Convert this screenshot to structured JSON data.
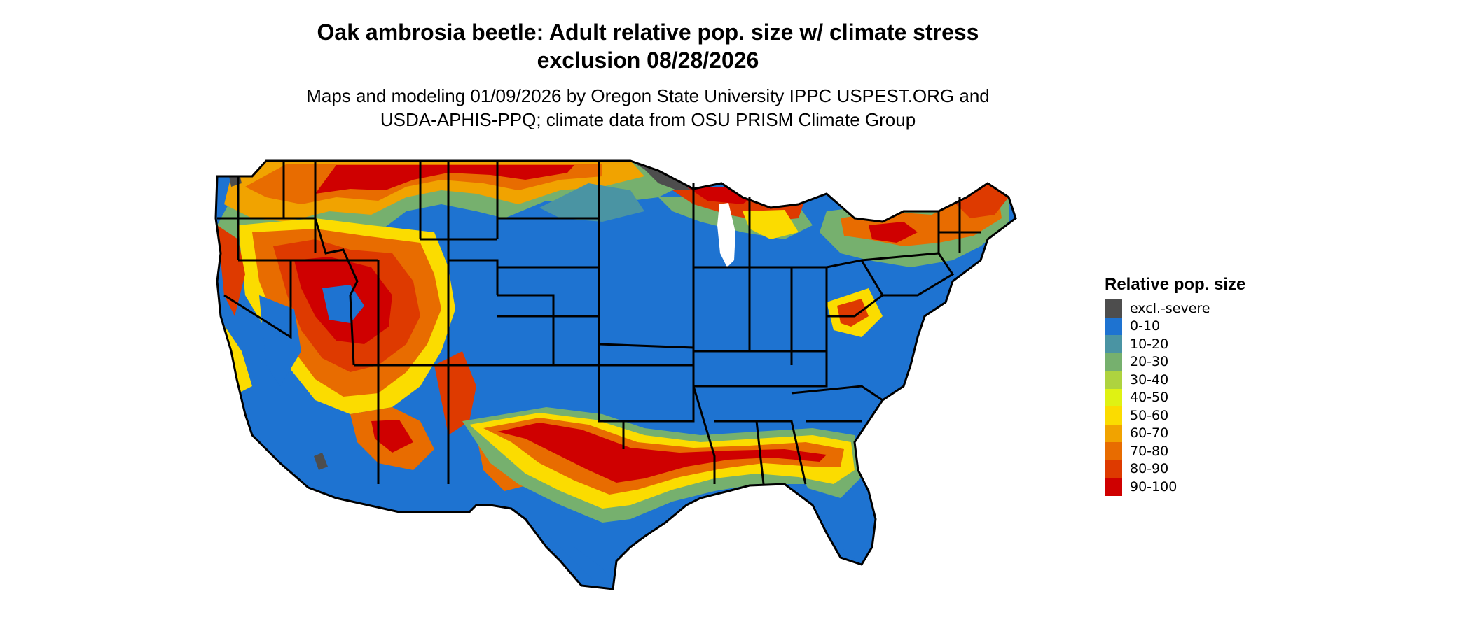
{
  "title_line1": "Oak ambrosia beetle: Adult relative pop. size w/ climate stress",
  "title_line2": "exclusion 08/28/2026",
  "subtitle_line1": "Maps and modeling 01/09/2026 by Oregon State University IPPC USPEST.ORG and",
  "subtitle_line2": "USDA-APHIS-PPQ; climate data from OSU PRISM Climate Group",
  "legend": {
    "title": "Relative pop. size",
    "items": [
      {
        "label": "excl.-severe",
        "color": "#4d4d4d"
      },
      {
        "label": "0-10",
        "color": "#1e73d1"
      },
      {
        "label": "10-20",
        "color": "#4a94a3"
      },
      {
        "label": "20-30",
        "color": "#76b06e"
      },
      {
        "label": "30-40",
        "color": "#aed33f"
      },
      {
        "label": "40-50",
        "color": "#dff213"
      },
      {
        "label": "50-60",
        "color": "#fbdc00"
      },
      {
        "label": "60-70",
        "color": "#f1a300"
      },
      {
        "label": "70-80",
        "color": "#e86c00"
      },
      {
        "label": "80-90",
        "color": "#de3a00"
      },
      {
        "label": "90-100",
        "color": "#cf0000"
      }
    ]
  }
}
